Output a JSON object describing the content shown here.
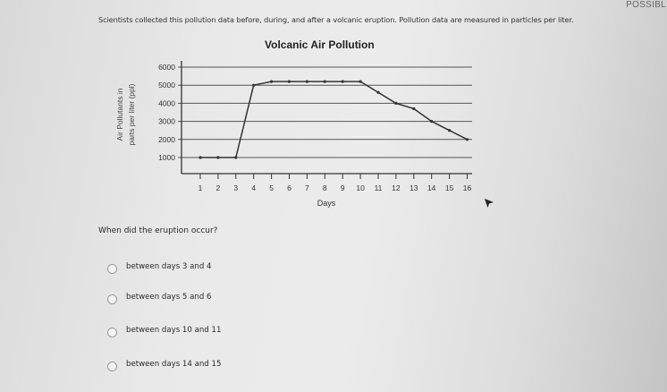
{
  "corner_text": "POSSIBL",
  "intro": "Scientists collected this pollution data before, during, and after a volcanic eruption. Pollution data are measured in particles per liter.",
  "chart_data": {
    "type": "line",
    "title": "Volcanic Air Pollution",
    "xlabel": "Days",
    "ylabel_line1": "Air Pollutants in",
    "ylabel_line2": "parts per liter (ppl)",
    "x": [
      1,
      2,
      3,
      4,
      5,
      6,
      7,
      8,
      9,
      10,
      11,
      12,
      13,
      14,
      15,
      16
    ],
    "values": [
      1000,
      1000,
      1000,
      5000,
      5200,
      5200,
      5200,
      5200,
      5200,
      5200,
      4600,
      4000,
      3700,
      3000,
      2500,
      2000
    ],
    "yticks": [
      1000,
      2000,
      3000,
      4000,
      5000,
      6000
    ],
    "ylim": [
      0,
      6000
    ],
    "xlim": [
      0,
      16
    ],
    "grid": true,
    "line_color": "#333333"
  },
  "question": "When did the eruption occur?",
  "options": [
    {
      "label": "between days 3 and 4",
      "selected": false
    },
    {
      "label": "between days 5 and 6",
      "selected": false
    },
    {
      "label": "between days 10 and 11",
      "selected": false
    },
    {
      "label": "between days 14 and 15",
      "selected": false
    }
  ]
}
